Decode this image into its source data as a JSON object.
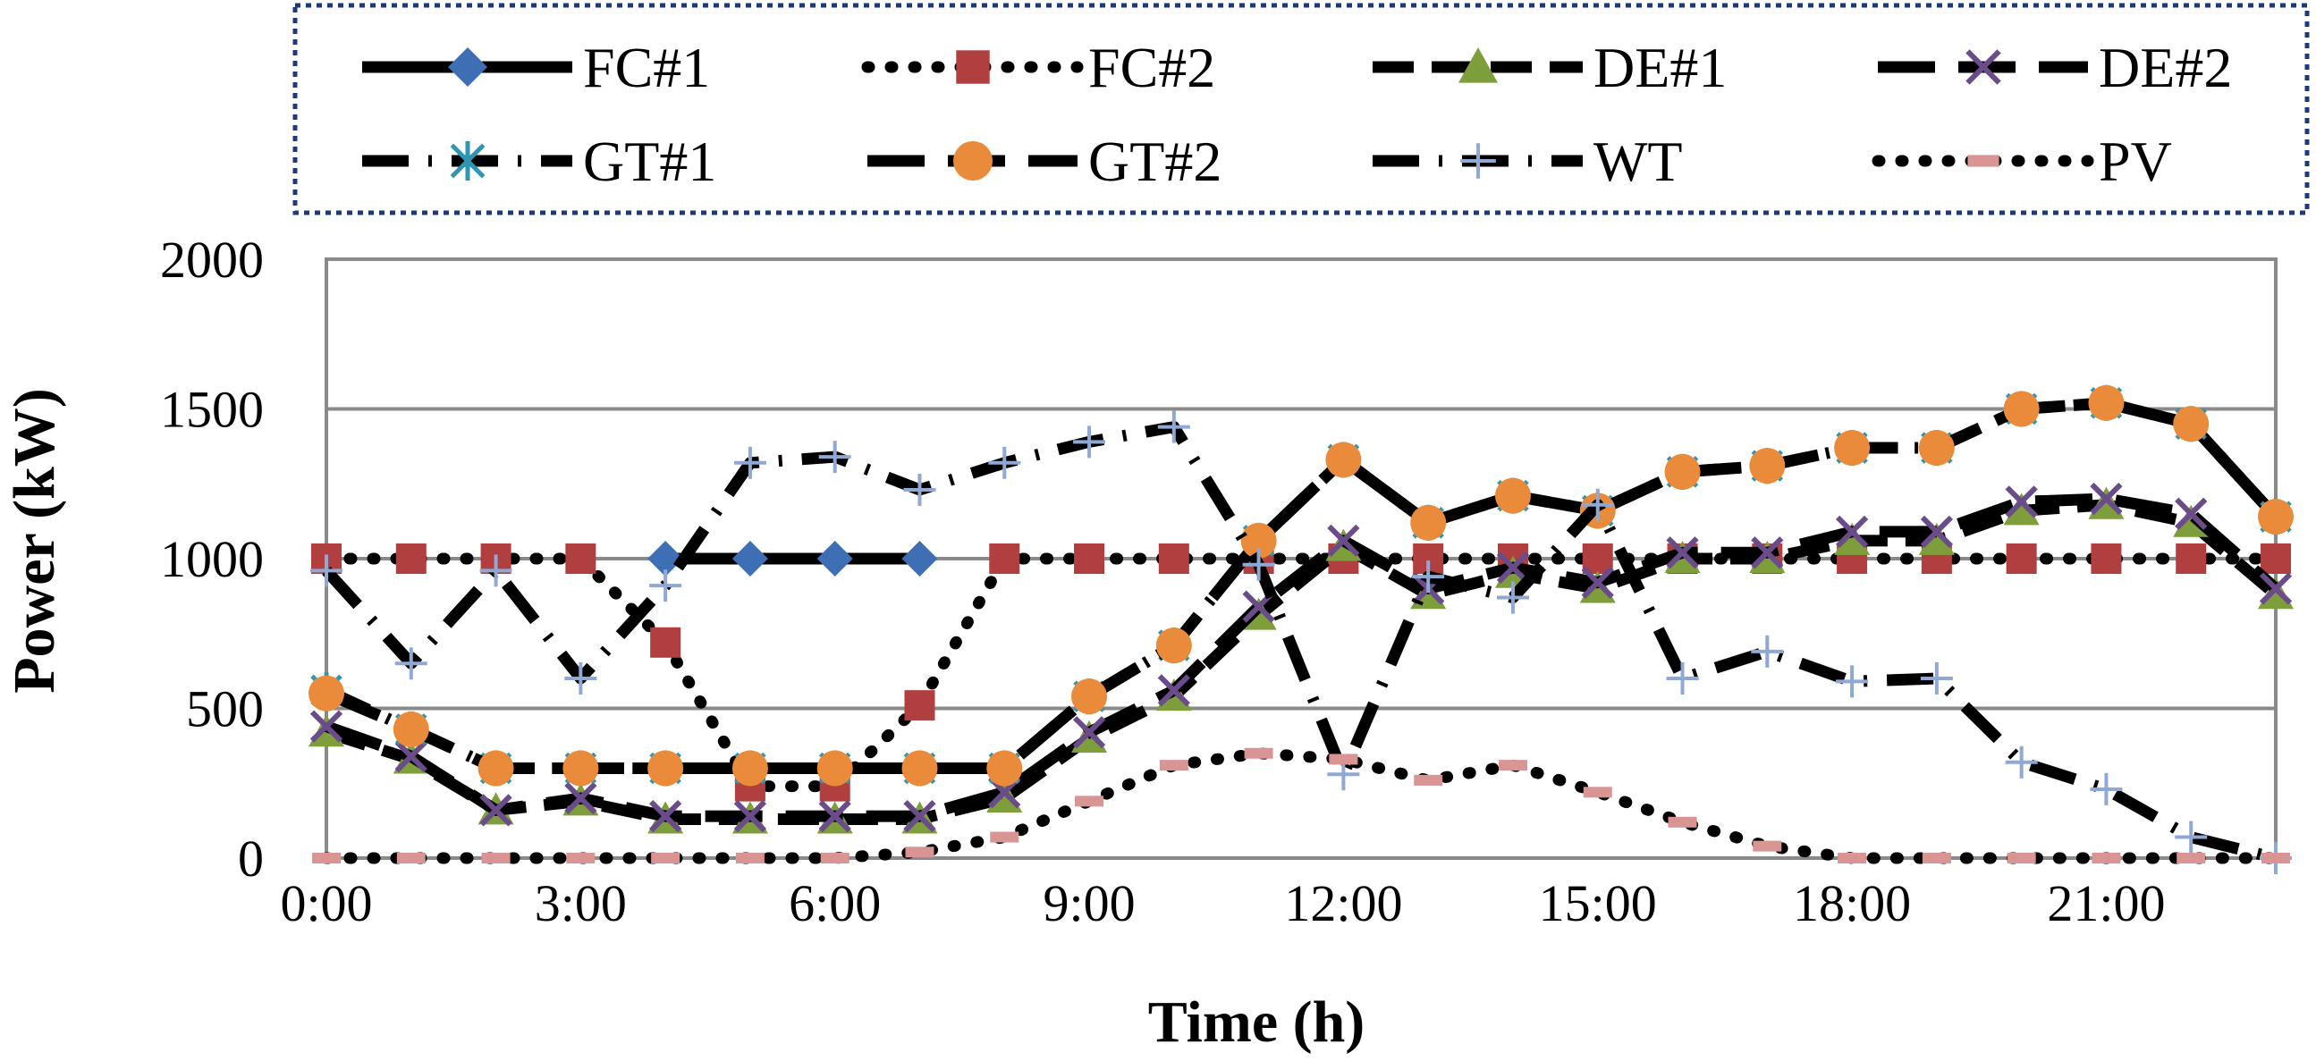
{
  "chart_data": {
    "type": "line",
    "title": "",
    "xlabel": "Time (h)",
    "ylabel": "Power (kW)",
    "ylim": [
      0,
      2000
    ],
    "xlim": [
      0,
      23
    ],
    "grid": "horizontal",
    "legend_position": "top",
    "x": [
      0,
      1,
      2,
      3,
      4,
      5,
      6,
      7,
      8,
      9,
      10,
      11,
      12,
      13,
      14,
      15,
      16,
      17,
      18,
      19,
      20,
      21,
      22,
      23
    ],
    "x_tick_labels": [
      "0:00",
      "3:00",
      "6:00",
      "9:00",
      "12:00",
      "15:00",
      "18:00",
      "21:00"
    ],
    "y_tick_labels": [
      "0",
      "500",
      "1000",
      "1500",
      "2000"
    ],
    "series": [
      {
        "name": "FC#1",
        "color": "#3E6FB5",
        "marker": "diamond",
        "line_color": "#000000",
        "line_style": "solid",
        "values": [
          null,
          null,
          null,
          null,
          1000,
          1000,
          1000,
          1000,
          null,
          null,
          null,
          null,
          null,
          null,
          null,
          null,
          null,
          null,
          null,
          null,
          null,
          null,
          null,
          null
        ]
      },
      {
        "name": "FC#2",
        "color": "#B23F3F",
        "marker": "square",
        "line_color": "#000000",
        "line_style": "dotted",
        "values": [
          1000,
          1000,
          1000,
          1000,
          720,
          240,
          240,
          510,
          1000,
          1000,
          1000,
          1000,
          1000,
          1000,
          1000,
          1000,
          1000,
          1000,
          1000,
          1000,
          1000,
          1000,
          1000,
          1000
        ]
      },
      {
        "name": "DE#1",
        "color": "#7E9E3C",
        "marker": "triangle",
        "line_color": "#000000",
        "line_style": "dashed",
        "values": [
          420,
          330,
          160,
          190,
          130,
          130,
          130,
          130,
          200,
          400,
          540,
          810,
          1040,
          880,
          950,
          900,
          1000,
          1000,
          1060,
          1060,
          1160,
          1180,
          1120,
          880
        ]
      },
      {
        "name": "DE#2",
        "color": "#6B4C8A",
        "marker": "x",
        "line_color": "#000000",
        "line_style": "longdash",
        "values": [
          440,
          340,
          160,
          200,
          140,
          140,
          140,
          140,
          220,
          420,
          560,
          840,
          1060,
          900,
          970,
          920,
          1020,
          1020,
          1090,
          1090,
          1190,
          1200,
          1150,
          900
        ]
      },
      {
        "name": "GT#1",
        "color": "#2E96B0",
        "marker": "star",
        "line_color": "#000000",
        "line_style": "dashdot",
        "values": [
          560,
          430,
          300,
          300,
          300,
          300,
          300,
          300,
          300,
          540,
          710,
          1060,
          1330,
          1120,
          1210,
          1160,
          1290,
          1310,
          1370,
          1370,
          1500,
          1520,
          1450,
          1140
        ]
      },
      {
        "name": "GT#2",
        "color": "#E98B3A",
        "marker": "circle",
        "line_color": "#000000",
        "line_style": "longdash",
        "values": [
          550,
          430,
          300,
          300,
          300,
          300,
          300,
          300,
          300,
          540,
          710,
          1060,
          1330,
          1120,
          1210,
          1160,
          1290,
          1310,
          1370,
          1370,
          1500,
          1520,
          1450,
          1140
        ]
      },
      {
        "name": "WT",
        "color": "#8FA8D4",
        "marker": "plus",
        "line_color": "#000000",
        "line_style": "dashdot",
        "values": [
          960,
          650,
          960,
          600,
          910,
          1320,
          1340,
          1230,
          1320,
          1390,
          1440,
          980,
          280,
          940,
          870,
          1180,
          600,
          690,
          590,
          600,
          320,
          230,
          70,
          0
        ]
      },
      {
        "name": "PV",
        "color": "#D99494",
        "marker": "dash",
        "line_color": "#000000",
        "line_style": "dotted",
        "values": [
          0,
          0,
          0,
          0,
          0,
          0,
          0,
          20,
          70,
          190,
          310,
          350,
          330,
          260,
          310,
          220,
          120,
          40,
          0,
          0,
          0,
          0,
          0,
          0
        ]
      }
    ]
  }
}
